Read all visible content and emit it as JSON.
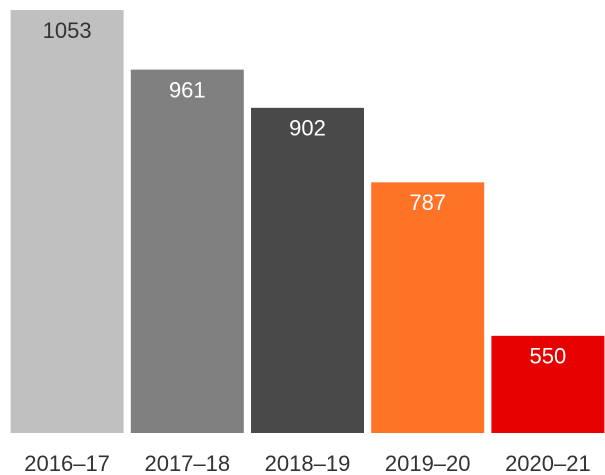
{
  "chart_data": {
    "type": "bar",
    "categories": [
      "2016–17",
      "2017–18",
      "2018–19",
      "2019–20",
      "2020–21"
    ],
    "values": [
      1053,
      961,
      902,
      787,
      550
    ],
    "colors": [
      "#c0c0c0",
      "#808080",
      "#494949",
      "#ff7326",
      "#e60000"
    ],
    "ylim": [
      400,
      1060
    ]
  }
}
